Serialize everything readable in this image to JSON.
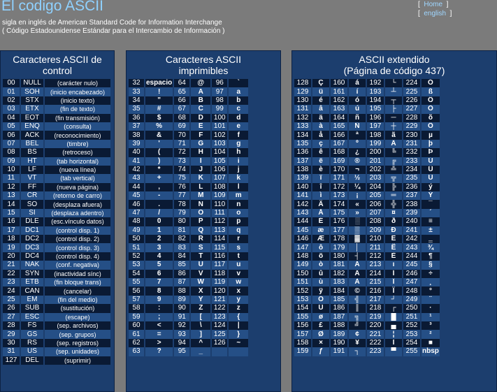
{
  "header": {
    "title": "El codigo ASCII",
    "subtitle1": "sigla en inglés de American Standard Code for Information Interchange",
    "subtitle2": "( Código Estadounidense Estándar para el Intercambio de Información )",
    "link_home": "Home",
    "link_english": "english"
  },
  "control": {
    "title": "Caracteres ASCII de control",
    "rows": [
      [
        "00",
        "NULL",
        "(carácter nulo)"
      ],
      [
        "01",
        "SOH",
        "(inicio encabezado)"
      ],
      [
        "02",
        "STX",
        "(inicio texto)"
      ],
      [
        "03",
        "ETX",
        "(fin de texto)"
      ],
      [
        "04",
        "EOT",
        "(fin transmisión)"
      ],
      [
        "05",
        "ENQ",
        "(consulta)"
      ],
      [
        "06",
        "ACK",
        "(reconocimiento)"
      ],
      [
        "07",
        "BEL",
        "(timbre)"
      ],
      [
        "08",
        "BS",
        "(retroceso)"
      ],
      [
        "09",
        "HT",
        "(tab horizontal)"
      ],
      [
        "10",
        "LF",
        "(nueva línea)"
      ],
      [
        "11",
        "VT",
        "(tab vertical)"
      ],
      [
        "12",
        "FF",
        "(nueva página)"
      ],
      [
        "13",
        "CR",
        "(retorno de carro)"
      ],
      [
        "14",
        "SO",
        "(desplaza afuera)"
      ],
      [
        "15",
        "SI",
        "(desplaza adentro)"
      ],
      [
        "16",
        "DLE",
        "(esc.vínculo datos)"
      ],
      [
        "17",
        "DC1",
        "(control disp. 1)"
      ],
      [
        "18",
        "DC2",
        "(control disp. 2)"
      ],
      [
        "19",
        "DC3",
        "(control disp. 3)"
      ],
      [
        "20",
        "DC4",
        "(control disp. 4)"
      ],
      [
        "21",
        "NAK",
        "(conf. negativa)"
      ],
      [
        "22",
        "SYN",
        "(inactividad sínc)"
      ],
      [
        "23",
        "ETB",
        "(fin bloque trans)"
      ],
      [
        "24",
        "CAN",
        "(cancelar)"
      ],
      [
        "25",
        "EM",
        "(fin del medio)"
      ],
      [
        "26",
        "SUB",
        "(sustitución)"
      ],
      [
        "27",
        "ESC",
        "(escape)"
      ],
      [
        "28",
        "FS",
        "(sep. archivos)"
      ],
      [
        "29",
        "GS",
        "(sep. grupos)"
      ],
      [
        "30",
        "RS",
        "(sep. registros)"
      ],
      [
        "31",
        "US",
        "(sep. unidades)"
      ],
      [
        "127",
        "DEL",
        "(suprimir)"
      ]
    ]
  },
  "printable": {
    "title": "Caracteres ASCII imprimibles",
    "rows": [
      [
        "32",
        "espacio",
        "64",
        "@",
        "96",
        "`"
      ],
      [
        "33",
        "!",
        "65",
        "A",
        "97",
        "a"
      ],
      [
        "34",
        "\"",
        "66",
        "B",
        "98",
        "b"
      ],
      [
        "35",
        "#",
        "67",
        "C",
        "99",
        "c"
      ],
      [
        "36",
        "$",
        "68",
        "D",
        "100",
        "d"
      ],
      [
        "37",
        "%",
        "69",
        "E",
        "101",
        "e"
      ],
      [
        "38",
        "&",
        "70",
        "F",
        "102",
        "f"
      ],
      [
        "39",
        "'",
        "71",
        "G",
        "103",
        "g"
      ],
      [
        "40",
        "(",
        "72",
        "H",
        "104",
        "h"
      ],
      [
        "41",
        ")",
        "73",
        "I",
        "105",
        "i"
      ],
      [
        "42",
        "*",
        "74",
        "J",
        "106",
        "j"
      ],
      [
        "43",
        "+",
        "75",
        "K",
        "107",
        "k"
      ],
      [
        "44",
        ",",
        "76",
        "L",
        "108",
        "l"
      ],
      [
        "45",
        "-",
        "77",
        "M",
        "109",
        "m"
      ],
      [
        "46",
        ".",
        "78",
        "N",
        "110",
        "n"
      ],
      [
        "47",
        "/",
        "79",
        "O",
        "111",
        "o"
      ],
      [
        "48",
        "0",
        "80",
        "P",
        "112",
        "p"
      ],
      [
        "49",
        "1",
        "81",
        "Q",
        "113",
        "q"
      ],
      [
        "50",
        "2",
        "82",
        "R",
        "114",
        "r"
      ],
      [
        "51",
        "3",
        "83",
        "S",
        "115",
        "s"
      ],
      [
        "52",
        "4",
        "84",
        "T",
        "116",
        "t"
      ],
      [
        "53",
        "5",
        "85",
        "U",
        "117",
        "u"
      ],
      [
        "54",
        "6",
        "86",
        "V",
        "118",
        "v"
      ],
      [
        "55",
        "7",
        "87",
        "W",
        "119",
        "w"
      ],
      [
        "56",
        "8",
        "88",
        "X",
        "120",
        "x"
      ],
      [
        "57",
        "9",
        "89",
        "Y",
        "121",
        "y"
      ],
      [
        "58",
        ":",
        "90",
        "Z",
        "122",
        "z"
      ],
      [
        "59",
        ";",
        "91",
        "[",
        "123",
        "{"
      ],
      [
        "60",
        "<",
        "92",
        "\\",
        "124",
        "|"
      ],
      [
        "61",
        "=",
        "93",
        "]",
        "125",
        "}"
      ],
      [
        "62",
        ">",
        "94",
        "^",
        "126",
        "~"
      ],
      [
        "63",
        "?",
        "95",
        "_",
        "",
        ""
      ]
    ]
  },
  "extended": {
    "title": "ASCII extendido",
    "subtitle": "(Página de código 437)",
    "rows": [
      [
        "128",
        "Ç",
        "160",
        "á",
        "192",
        "└",
        "224",
        "Ó"
      ],
      [
        "129",
        "ü",
        "161",
        "í",
        "193",
        "┴",
        "225",
        "ß"
      ],
      [
        "130",
        "é",
        "162",
        "ó",
        "194",
        "┬",
        "226",
        "Ô"
      ],
      [
        "131",
        "â",
        "163",
        "ú",
        "195",
        "├",
        "227",
        "Ò"
      ],
      [
        "132",
        "ä",
        "164",
        "ñ",
        "196",
        "─",
        "228",
        "õ"
      ],
      [
        "133",
        "à",
        "165",
        "Ñ",
        "197",
        "┼",
        "229",
        "Õ"
      ],
      [
        "134",
        "å",
        "166",
        "ª",
        "198",
        "ã",
        "230",
        "µ"
      ],
      [
        "135",
        "ç",
        "167",
        "º",
        "199",
        "Ã",
        "231",
        "þ"
      ],
      [
        "136",
        "ê",
        "168",
        "¿",
        "200",
        "╚",
        "232",
        "Þ"
      ],
      [
        "137",
        "ë",
        "169",
        "®",
        "201",
        "╔",
        "233",
        "Ú"
      ],
      [
        "138",
        "è",
        "170",
        "¬",
        "202",
        "╩",
        "234",
        "Û"
      ],
      [
        "139",
        "ï",
        "171",
        "½",
        "203",
        "╦",
        "235",
        "Ù"
      ],
      [
        "140",
        "î",
        "172",
        "¼",
        "204",
        "╠",
        "236",
        "ý"
      ],
      [
        "141",
        "ì",
        "173",
        "¡",
        "205",
        "═",
        "237",
        "Ý"
      ],
      [
        "142",
        "Ä",
        "174",
        "«",
        "206",
        "╬",
        "238",
        "¯"
      ],
      [
        "143",
        "Å",
        "175",
        "»",
        "207",
        "¤",
        "239",
        "´"
      ],
      [
        "144",
        "É",
        "176",
        "░",
        "208",
        "ð",
        "240",
        "≡"
      ],
      [
        "145",
        "æ",
        "177",
        "▒",
        "209",
        "Ð",
        "241",
        "±"
      ],
      [
        "146",
        "Æ",
        "178",
        "▓",
        "210",
        "Ê",
        "242",
        "‗"
      ],
      [
        "147",
        "ô",
        "179",
        "│",
        "211",
        "Ë",
        "243",
        "¾"
      ],
      [
        "148",
        "ö",
        "180",
        "┤",
        "212",
        "È",
        "244",
        "¶"
      ],
      [
        "149",
        "ò",
        "181",
        "Á",
        "213",
        "ı",
        "245",
        "§"
      ],
      [
        "150",
        "û",
        "182",
        "Â",
        "214",
        "Í",
        "246",
        "÷"
      ],
      [
        "151",
        "ù",
        "183",
        "À",
        "215",
        "Î",
        "247",
        "¸"
      ],
      [
        "152",
        "ÿ",
        "184",
        "©",
        "216",
        "Ï",
        "248",
        "°"
      ],
      [
        "153",
        "Ö",
        "185",
        "╣",
        "217",
        "┘",
        "249",
        "¨"
      ],
      [
        "154",
        "Ü",
        "186",
        "║",
        "218",
        "┌",
        "250",
        "·"
      ],
      [
        "155",
        "ø",
        "187",
        "╗",
        "219",
        "█",
        "251",
        "¹"
      ],
      [
        "156",
        "£",
        "188",
        "╝",
        "220",
        "▄",
        "252",
        "³"
      ],
      [
        "157",
        "Ø",
        "189",
        "¢",
        "221",
        "¦",
        "253",
        "²"
      ],
      [
        "158",
        "×",
        "190",
        "¥",
        "222",
        "Ì",
        "254",
        "■"
      ],
      [
        "159",
        "ƒ",
        "191",
        "┐",
        "223",
        "▀",
        "255",
        "nbsp"
      ]
    ]
  }
}
